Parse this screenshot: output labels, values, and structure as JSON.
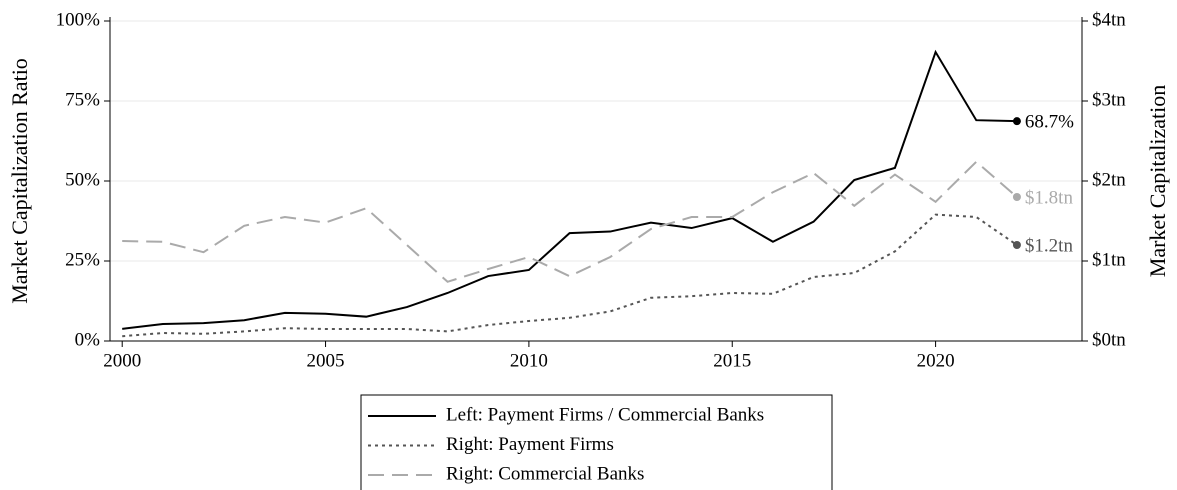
{
  "chart_data": {
    "type": "line",
    "ylabel": "Market Capitalization Ratio",
    "y2label": "Market Capitalization",
    "x": [
      2000,
      2001,
      2002,
      2003,
      2004,
      2005,
      2006,
      2007,
      2008,
      2009,
      2010,
      2011,
      2012,
      2013,
      2014,
      2015,
      2016,
      2017,
      2018,
      2019,
      2020,
      2021,
      2022
    ],
    "xlim": [
      1999.7,
      2023.6
    ],
    "xticks": [
      2000,
      2005,
      2010,
      2015,
      2020
    ],
    "ylim": [
      0,
      100
    ],
    "yticks": [
      {
        "value": 0,
        "label": "0%"
      },
      {
        "value": 25,
        "label": "25%"
      },
      {
        "value": 50,
        "label": "50%"
      },
      {
        "value": 75,
        "label": "75%"
      },
      {
        "value": 100,
        "label": "100%"
      }
    ],
    "y2lim": [
      0,
      4
    ],
    "y2ticks": [
      {
        "value": 0,
        "label": "$0tn"
      },
      {
        "value": 1,
        "label": "$1tn"
      },
      {
        "value": 2,
        "label": "$2tn"
      },
      {
        "value": 3,
        "label": "$3tn"
      },
      {
        "value": 4,
        "label": "$4tn"
      }
    ],
    "grid": true,
    "legend": "bottom",
    "series": [
      {
        "name": "Left: Payment Firms / Commercial Banks",
        "color": "#000000",
        "dash": "solid",
        "values": [
          3.8,
          5.3,
          5.6,
          6.5,
          8.8,
          8.5,
          7.6,
          10.6,
          15,
          20.3,
          22.2,
          33.7,
          34.2,
          37,
          35.3,
          38.4,
          31,
          37.3,
          50.3,
          54.1,
          90.3,
          69,
          68.7
        ],
        "value_labels": [
          null,
          null,
          null,
          null,
          null,
          null,
          null,
          null,
          null,
          null,
          null,
          null,
          null,
          null,
          null,
          null,
          null,
          null,
          null,
          null,
          null,
          null,
          "68.7%"
        ]
      },
      {
        "name": "Right: Payment Firms",
        "color": "#555555",
        "dash": "dotted",
        "axis": "y2",
        "values": [
          0.06,
          0.1,
          0.09,
          0.12,
          0.16,
          0.15,
          0.15,
          0.15,
          0.12,
          0.2,
          0.25,
          0.29,
          0.37,
          0.54,
          0.56,
          0.6,
          0.59,
          0.8,
          0.85,
          1.12,
          1.58,
          1.55,
          1.2
        ],
        "value_labels": [
          null,
          null,
          null,
          null,
          null,
          null,
          null,
          null,
          null,
          null,
          null,
          null,
          null,
          null,
          null,
          null,
          null,
          null,
          null,
          null,
          null,
          null,
          "$1.2tn"
        ]
      },
      {
        "name": "Right: Commercial Banks",
        "color": "#aaaaaa",
        "dash": "dashed",
        "axis": "y2",
        "values": [
          1.25,
          1.24,
          1.11,
          1.44,
          1.55,
          1.48,
          1.66,
          1.2,
          0.74,
          0.9,
          1.05,
          0.81,
          1.05,
          1.4,
          1.55,
          1.55,
          1.86,
          2.1,
          1.69,
          2.08,
          1.74,
          2.24,
          1.8
        ],
        "value_labels": [
          null,
          null,
          null,
          null,
          null,
          null,
          null,
          null,
          null,
          null,
          null,
          null,
          null,
          null,
          null,
          null,
          null,
          null,
          null,
          null,
          null,
          null,
          "$1.8tn"
        ]
      }
    ]
  }
}
